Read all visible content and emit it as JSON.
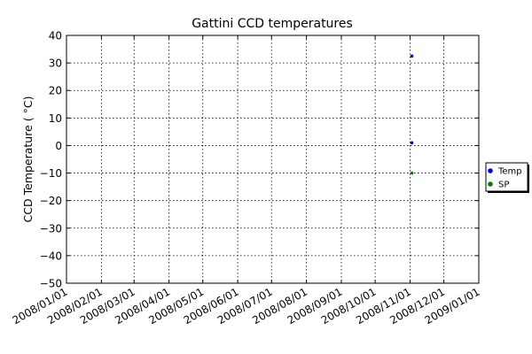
{
  "chart_data": {
    "type": "scatter",
    "title": "Gattini CCD temperatures",
    "xlabel": "",
    "ylabel": "CCD Temperature ( °C)",
    "x_axis": {
      "type": "date",
      "range": [
        "2008-01-01",
        "2009-01-01"
      ],
      "tick_labels": [
        "2008/01/01",
        "2008/02/01",
        "2008/03/01",
        "2008/04/01",
        "2008/05/01",
        "2008/06/01",
        "2008/07/01",
        "2008/08/01",
        "2008/09/01",
        "2008/10/01",
        "2008/11/01",
        "2008/12/01",
        "2009/01/01"
      ],
      "tick_dates": [
        "2008-01-01",
        "2008-02-01",
        "2008-03-01",
        "2008-04-01",
        "2008-05-01",
        "2008-06-01",
        "2008-07-01",
        "2008-08-01",
        "2008-09-01",
        "2008-10-01",
        "2008-11-01",
        "2008-12-01",
        "2009-01-01"
      ]
    },
    "y_axis": {
      "range": [
        -50,
        40
      ],
      "ticks": [
        40,
        30,
        20,
        10,
        0,
        -10,
        -20,
        -30,
        -40,
        -50
      ],
      "tick_labels": [
        "40",
        "30",
        "20",
        "10",
        "0",
        "−10",
        "−20",
        "−30",
        "−40",
        "−50"
      ]
    },
    "grid": true,
    "legend_position": "right",
    "series": [
      {
        "name": "Temp",
        "color": "#0000ff",
        "marker": "circle",
        "points": [
          {
            "x": "2008-11-01",
            "y": 32.5
          },
          {
            "x": "2008-11-01",
            "y": 1.0
          }
        ]
      },
      {
        "name": "SP",
        "color": "#008000",
        "marker": "circle",
        "points": [
          {
            "x": "2008-11-01",
            "y": -10
          }
        ]
      }
    ]
  }
}
